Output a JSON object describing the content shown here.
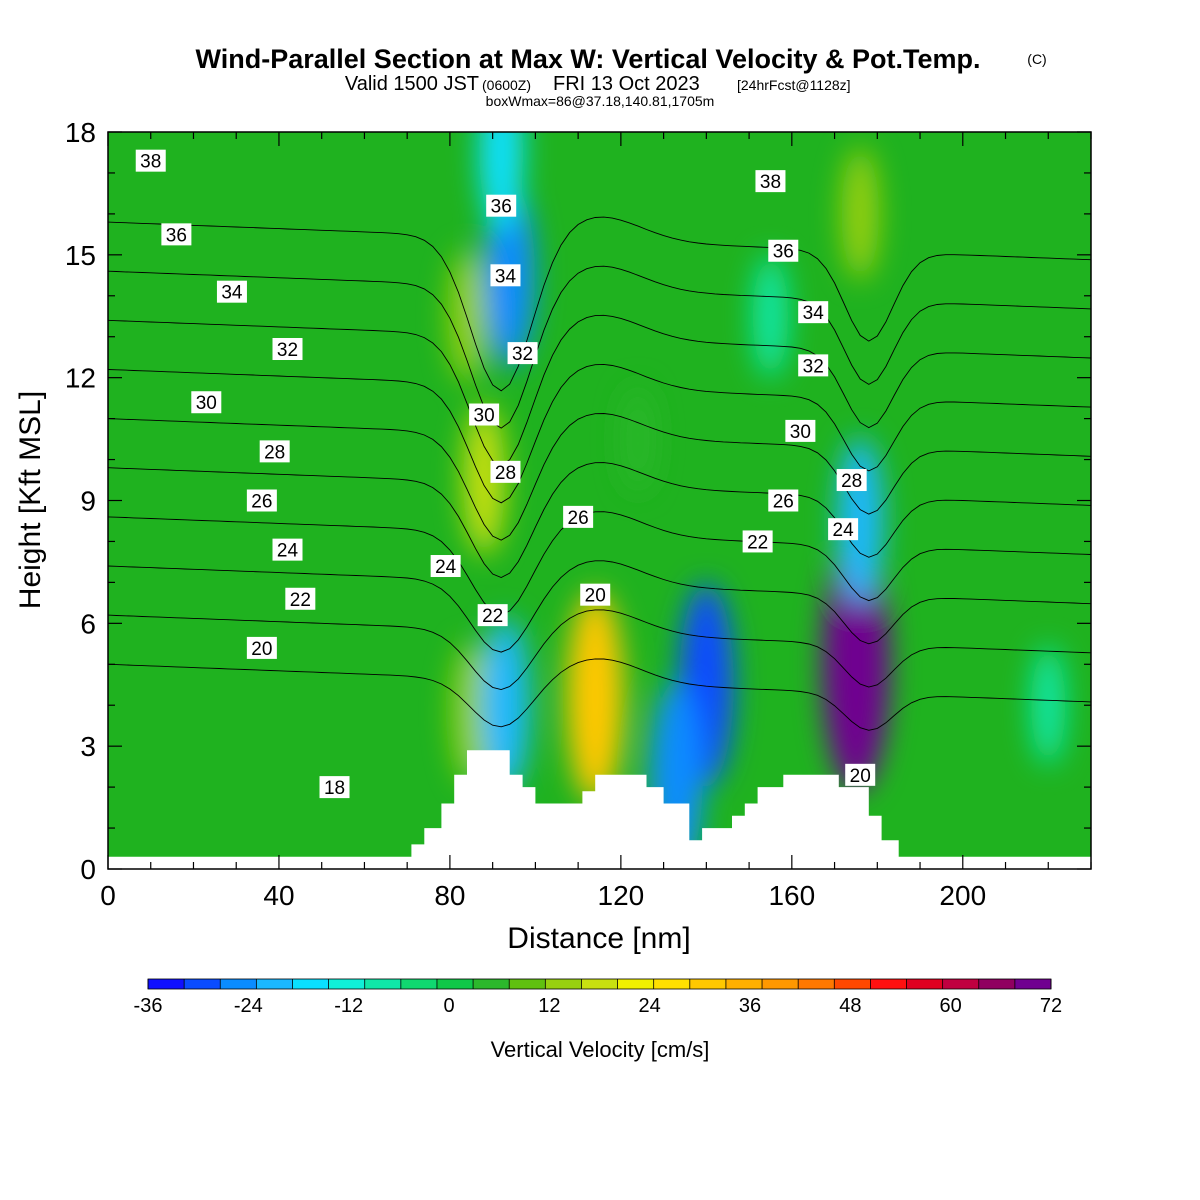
{
  "title": {
    "main": "Wind-Parallel Section at Max W: Vertical Velocity & Pot.Temp.",
    "copyright": "(C)",
    "valid_prefix": "Valid 1500 JST",
    "valid_utc": "(0600Z)",
    "valid_date": "FRI 13 Oct 2023",
    "forecast": "[24hrFcst@1128z]",
    "box_info": "boxWmax=86@37.18,140.81,1705m"
  },
  "colors": {
    "background_field": "#1fb21f",
    "terrain": "#ffffff",
    "contour_line": "#000000",
    "colorbar": [
      "#1010ff",
      "#0a4cff",
      "#0a8cff",
      "#1ab8ff",
      "#0ae0ff",
      "#10f0d8",
      "#10e8a8",
      "#10d870",
      "#10c848",
      "#2cb82c",
      "#60c010",
      "#98d010",
      "#c8e010",
      "#f0f000",
      "#ffe000",
      "#ffc800",
      "#ffb000",
      "#ff9800",
      "#ff7800",
      "#ff4800",
      "#ff1010",
      "#e00020",
      "#c00040",
      "#900060",
      "#700090"
    ]
  },
  "chart_data": {
    "type": "heatmap",
    "xlabel": "Distance [nm]",
    "ylabel": "Height [Kft MSL]",
    "xlim": [
      0,
      230
    ],
    "ylim": [
      0,
      18
    ],
    "xticks": [
      "0",
      "40",
      "80",
      "120",
      "160",
      "200"
    ],
    "yticks": [
      "0",
      "3",
      "6",
      "9",
      "12",
      "15",
      "18"
    ],
    "colorbar": {
      "label": "Vertical Velocity [cm/s]",
      "ticks": [
        "-36",
        "-24",
        "-12",
        "0",
        "12",
        "24",
        "36",
        "48",
        "60",
        "72"
      ],
      "min": -36,
      "max": 72
    },
    "vertical_velocity_features": [
      {
        "x": 114,
        "y": 4.2,
        "w": 30,
        "kind": "updraft"
      },
      {
        "x": 175,
        "y": 5.0,
        "w": 86,
        "kind": "updraft"
      },
      {
        "x": 85,
        "y": 3.8,
        "w": 14,
        "kind": "updraft"
      },
      {
        "x": 88,
        "y": 9.5,
        "w": 16,
        "kind": "updraft"
      },
      {
        "x": 84,
        "y": 13.5,
        "w": 12,
        "kind": "updraft"
      },
      {
        "x": 124,
        "y": 10.5,
        "w": 6,
        "kind": "updraft"
      },
      {
        "x": 176,
        "y": 16.0,
        "w": 12,
        "kind": "updraft"
      },
      {
        "x": 94,
        "y": 14.5,
        "w": -24,
        "kind": "downdraft"
      },
      {
        "x": 92,
        "y": 17.5,
        "w": -18,
        "kind": "downdraft"
      },
      {
        "x": 93,
        "y": 4.0,
        "w": -22,
        "kind": "downdraft"
      },
      {
        "x": 140,
        "y": 4.5,
        "w": -28,
        "kind": "downdraft"
      },
      {
        "x": 133,
        "y": 2.2,
        "w": -26,
        "kind": "downdraft"
      },
      {
        "x": 176,
        "y": 8.5,
        "w": -20,
        "kind": "downdraft"
      },
      {
        "x": 155,
        "y": 13.5,
        "w": -10,
        "kind": "downdraft"
      },
      {
        "x": 220,
        "y": 4.0,
        "w": -9,
        "kind": "downdraft"
      }
    ],
    "potential_temperature_contours": {
      "levels": [
        18,
        20,
        22,
        24,
        26,
        28,
        30,
        32,
        34,
        36,
        38
      ],
      "labels": [
        {
          "text": "38",
          "x": 10,
          "y": 17.3
        },
        {
          "text": "36",
          "x": 16,
          "y": 15.5
        },
        {
          "text": "34",
          "x": 29,
          "y": 14.1
        },
        {
          "text": "32",
          "x": 42,
          "y": 12.7
        },
        {
          "text": "30",
          "x": 23,
          "y": 11.4
        },
        {
          "text": "28",
          "x": 39,
          "y": 10.2
        },
        {
          "text": "26",
          "x": 36,
          "y": 9.0
        },
        {
          "text": "24",
          "x": 42,
          "y": 7.8
        },
        {
          "text": "22",
          "x": 45,
          "y": 6.6
        },
        {
          "text": "20",
          "x": 36,
          "y": 5.4
        },
        {
          "text": "18",
          "x": 53,
          "y": 2.0
        },
        {
          "text": "36",
          "x": 92,
          "y": 16.2
        },
        {
          "text": "34",
          "x": 93,
          "y": 14.5
        },
        {
          "text": "32",
          "x": 97,
          "y": 12.6
        },
        {
          "text": "30",
          "x": 88,
          "y": 11.1
        },
        {
          "text": "28",
          "x": 93,
          "y": 9.7
        },
        {
          "text": "24",
          "x": 79,
          "y": 7.4
        },
        {
          "text": "22",
          "x": 90,
          "y": 6.2
        },
        {
          "text": "26",
          "x": 110,
          "y": 8.6
        },
        {
          "text": "20",
          "x": 114,
          "y": 6.7
        },
        {
          "text": "38",
          "x": 155,
          "y": 16.8
        },
        {
          "text": "36",
          "x": 158,
          "y": 15.1
        },
        {
          "text": "34",
          "x": 165,
          "y": 13.6
        },
        {
          "text": "32",
          "x": 165,
          "y": 12.3
        },
        {
          "text": "30",
          "x": 162,
          "y": 10.7
        },
        {
          "text": "28",
          "x": 174,
          "y": 9.5
        },
        {
          "text": "26",
          "x": 158,
          "y": 9.0
        },
        {
          "text": "22",
          "x": 152,
          "y": 8.0
        },
        {
          "text": "24",
          "x": 172,
          "y": 8.3
        },
        {
          "text": "20",
          "x": 176,
          "y": 2.3
        }
      ]
    },
    "terrain_profile": [
      [
        0,
        0.3
      ],
      [
        71,
        0.3
      ],
      [
        71,
        0.6
      ],
      [
        74,
        0.6
      ],
      [
        74,
        1.0
      ],
      [
        78,
        1.0
      ],
      [
        78,
        1.6
      ],
      [
        81,
        1.6
      ],
      [
        81,
        2.3
      ],
      [
        84,
        2.3
      ],
      [
        84,
        2.9
      ],
      [
        94,
        2.9
      ],
      [
        94,
        2.3
      ],
      [
        97,
        2.3
      ],
      [
        97,
        2.0
      ],
      [
        100,
        2.0
      ],
      [
        100,
        1.6
      ],
      [
        107,
        1.6
      ],
      [
        107,
        1.6
      ],
      [
        111,
        1.6
      ],
      [
        111,
        1.9
      ],
      [
        114,
        1.9
      ],
      [
        114,
        2.3
      ],
      [
        126,
        2.3
      ],
      [
        126,
        2.0
      ],
      [
        130,
        2.0
      ],
      [
        130,
        1.6
      ],
      [
        136,
        1.6
      ],
      [
        136,
        0.7
      ],
      [
        139,
        0.7
      ],
      [
        139,
        1.0
      ],
      [
        146,
        1.0
      ],
      [
        146,
        1.3
      ],
      [
        149,
        1.3
      ],
      [
        149,
        1.6
      ],
      [
        152,
        1.6
      ],
      [
        152,
        2.0
      ],
      [
        158,
        2.0
      ],
      [
        158,
        2.3
      ],
      [
        171,
        2.3
      ],
      [
        171,
        2.0
      ],
      [
        178,
        2.0
      ],
      [
        178,
        1.3
      ],
      [
        181,
        1.3
      ],
      [
        181,
        0.7
      ],
      [
        185,
        0.7
      ],
      [
        185,
        0.3
      ],
      [
        230,
        0.3
      ]
    ]
  }
}
